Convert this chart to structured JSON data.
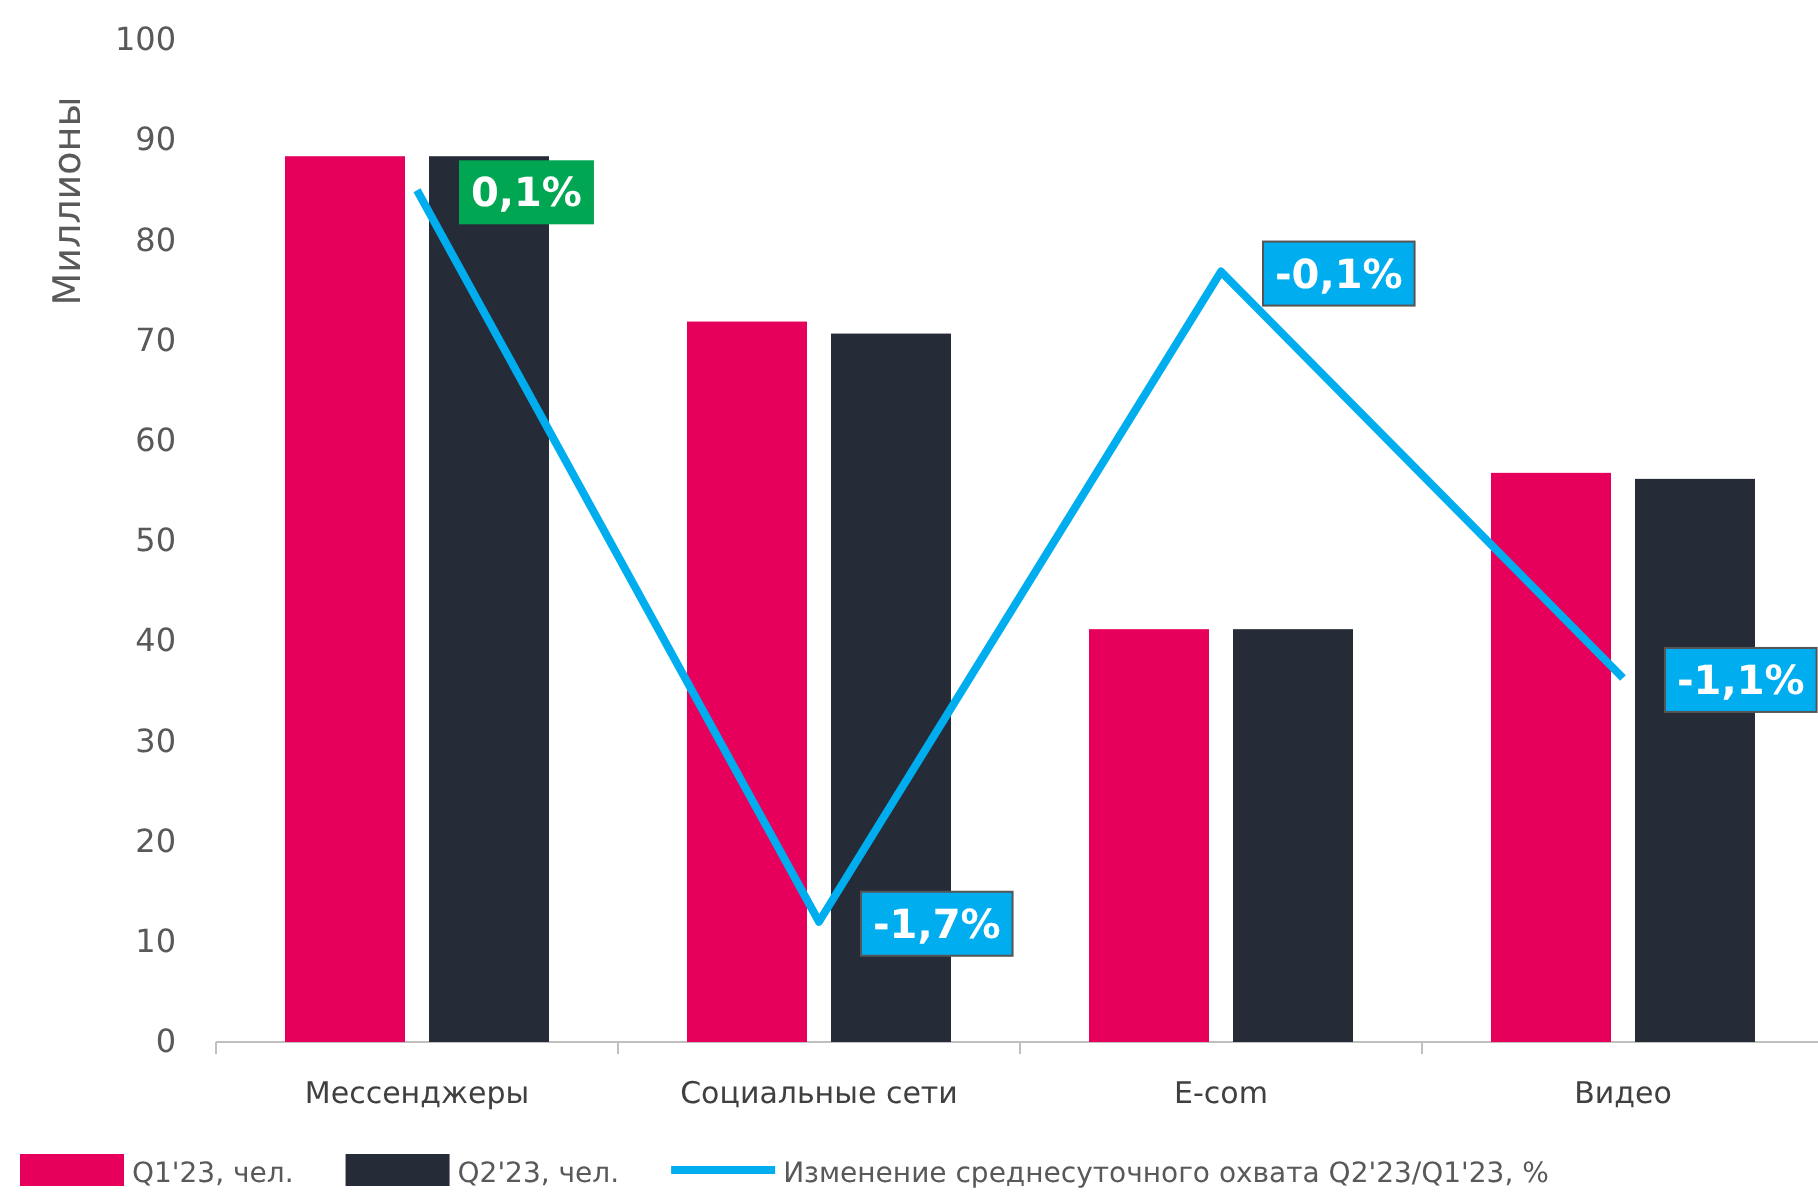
{
  "chart_data": {
    "type": "bar",
    "ylabel": "Миллионы",
    "categories": [
      "Мессенджеры",
      "Социальные сети",
      "E-com",
      "Видео"
    ],
    "series": [
      {
        "name": "Q1'23, чел.",
        "color": "#e6005c",
        "values": [
          88.4,
          71.9,
          41.2,
          56.8
        ]
      },
      {
        "name": "Q2'23, чел.",
        "color": "#262b38",
        "values": [
          88.4,
          70.7,
          41.2,
          56.2
        ]
      },
      {
        "name": "Изменение среднесуточного охвата Q2'23/Q1'23, %",
        "type": "line",
        "axis": "y2",
        "color": "#00aeef",
        "values": [
          0.1,
          -1.7,
          -0.1,
          -1.1
        ],
        "value_labels": [
          "0,1%",
          "-1,7%",
          "-0,1%",
          "-1,1%"
        ],
        "colors": [
          "#00a651",
          "#00aeef",
          "#00aeef",
          "#00aeef"
        ]
      }
    ],
    "ylim": [
      0,
      100
    ],
    "yticks": [
      0,
      10,
      20,
      30,
      40,
      50,
      60,
      70,
      80,
      90,
      100
    ],
    "grid": false,
    "legend": "bottom"
  }
}
